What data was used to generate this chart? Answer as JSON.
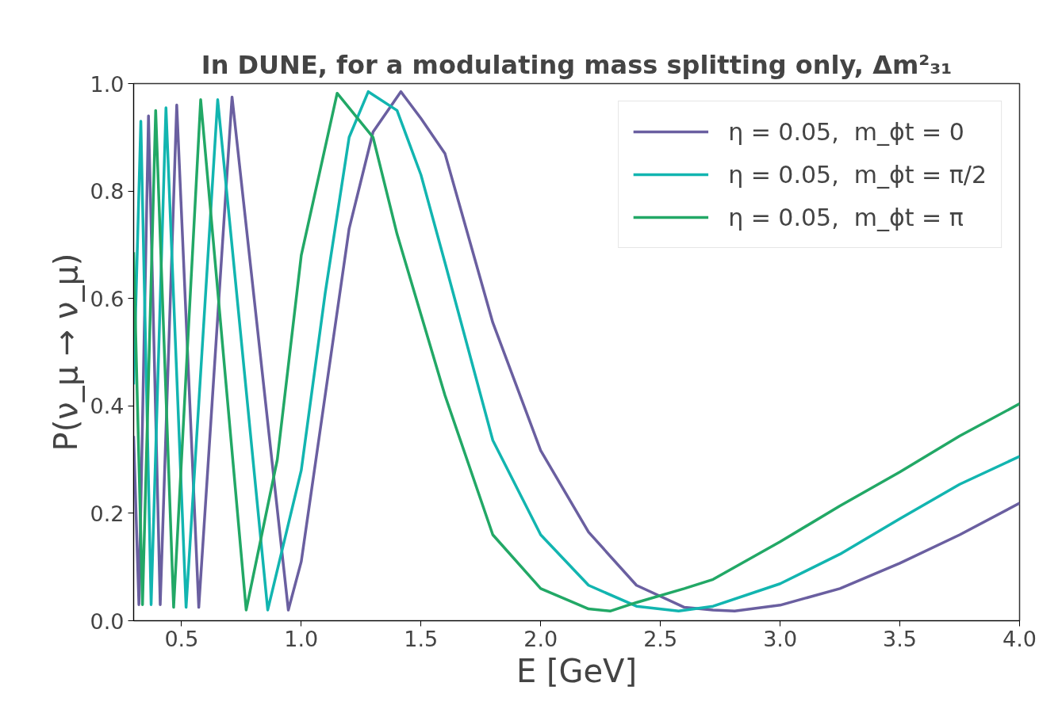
{
  "chart_data": {
    "type": "line",
    "title": "In DUNE, for a modulating mass splitting only, Δm²₃₁",
    "xlabel": "E [GeV]",
    "ylabel": "P(ν_μ → ν_μ)",
    "xlim": [
      0.3,
      4.0
    ],
    "ylim": [
      0.0,
      1.0
    ],
    "xticks": [
      0.5,
      {
        "value": 1.0,
        "label": "1.0"
      },
      1.5,
      {
        "value": 2.0,
        "label": "2.0"
      },
      2.5,
      {
        "value": 3.0,
        "label": "3.0"
      },
      3.5,
      {
        "value": 4.0,
        "label": "4.0"
      }
    ],
    "yticks": [
      {
        "value": 0.0,
        "label": "0.0"
      },
      0.2,
      0.4,
      0.6,
      0.8,
      {
        "value": 1.0,
        "label": "1.0"
      }
    ],
    "grid": false,
    "legend": "top right",
    "marker": "none",
    "line_style": "solid",
    "series": [
      {
        "name": "η = 0.05,  m_ϕt = 0",
        "color": "#6a5fa0",
        "x": [
          0.3,
          0.322,
          0.362,
          0.411,
          0.48,
          0.572,
          0.711,
          0.946,
          1.0,
          1.1,
          1.2,
          1.3,
          1.416,
          1.5,
          1.6,
          1.8,
          2.0,
          2.2,
          2.4,
          2.6,
          2.72,
          2.81,
          3.0,
          3.25,
          3.5,
          3.75,
          4.0
        ],
        "values": [
          0.344,
          0.03,
          0.94,
          0.03,
          0.96,
          0.025,
          0.975,
          0.02,
          0.11,
          0.42,
          0.73,
          0.91,
          0.985,
          0.935,
          0.87,
          0.555,
          0.317,
          0.165,
          0.066,
          0.025,
          0.02,
          0.018,
          0.029,
          0.06,
          0.107,
          0.16,
          0.219
        ]
      },
      {
        "name": "η = 0.05,  m_ϕt = π/2",
        "color": "#12b5b0",
        "x": [
          0.3,
          0.33,
          0.373,
          0.435,
          0.519,
          0.651,
          0.86,
          1.0,
          1.1,
          1.2,
          1.28,
          1.4,
          1.5,
          1.6,
          1.8,
          2.0,
          2.2,
          2.4,
          2.576,
          2.72,
          3.0,
          3.25,
          3.5,
          3.75,
          4.0
        ],
        "values": [
          0.44,
          0.93,
          0.03,
          0.955,
          0.025,
          0.97,
          0.02,
          0.28,
          0.61,
          0.9,
          0.985,
          0.95,
          0.83,
          0.667,
          0.336,
          0.16,
          0.066,
          0.027,
          0.018,
          0.027,
          0.069,
          0.124,
          0.19,
          0.254,
          0.306
        ]
      },
      {
        "name": "η = 0.05,  m_ϕt = π",
        "color": "#22a866",
        "x": [
          0.3,
          0.337,
          0.392,
          0.467,
          0.58,
          0.77,
          0.9,
          1.0,
          1.15,
          1.3,
          1.4,
          1.5,
          1.6,
          1.8,
          2.0,
          2.2,
          2.29,
          2.4,
          2.6,
          2.72,
          3.0,
          3.25,
          3.5,
          3.75,
          4.0
        ],
        "values": [
          0.686,
          0.03,
          0.95,
          0.025,
          0.97,
          0.02,
          0.3,
          0.68,
          0.982,
          0.9,
          0.72,
          0.57,
          0.42,
          0.16,
          0.06,
          0.022,
          0.018,
          0.034,
          0.06,
          0.077,
          0.147,
          0.214,
          0.277,
          0.344,
          0.404
        ]
      }
    ]
  }
}
